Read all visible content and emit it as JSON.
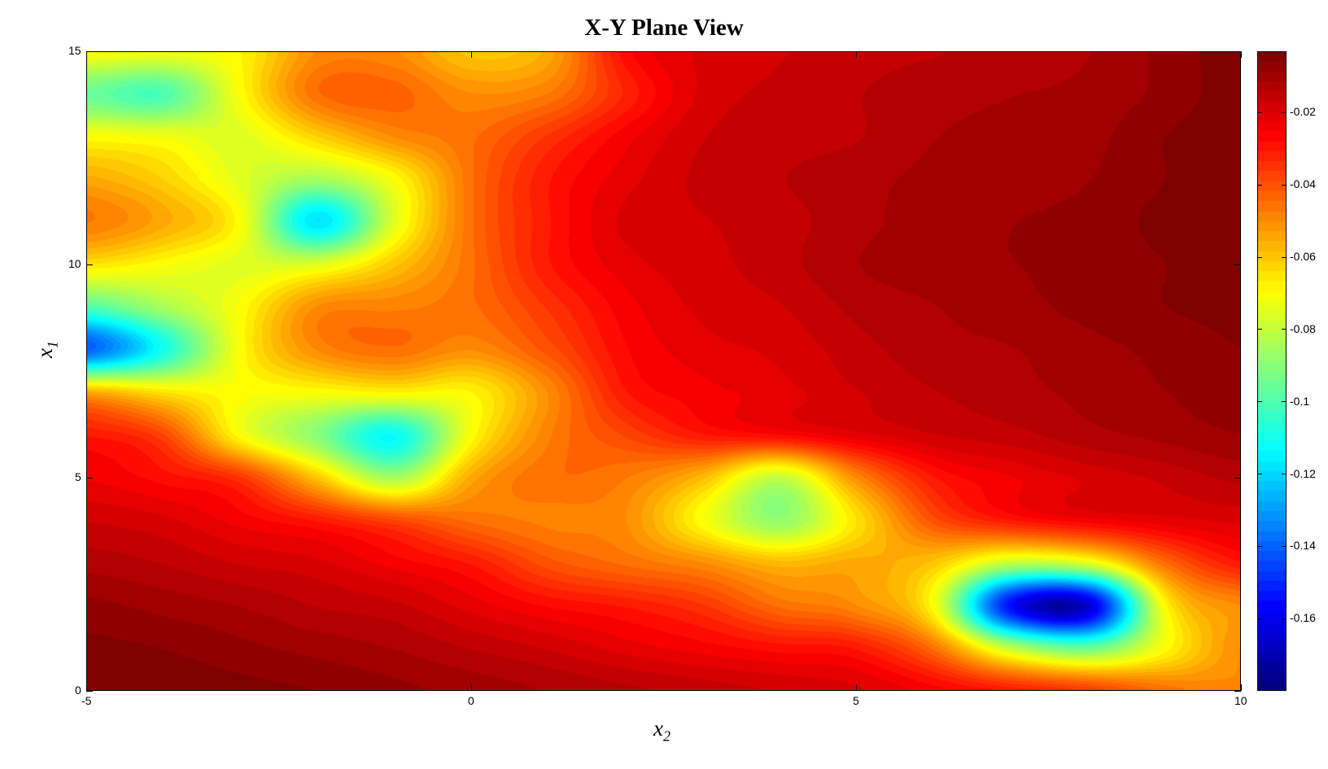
{
  "chart_data": {
    "type": "heatmap",
    "style": "filled-contour",
    "title": "X-Y Plane View",
    "xlabel": "x",
    "xlabel_sub": "2",
    "ylabel": "x",
    "ylabel_sub": "1",
    "xlim": [
      -5,
      10
    ],
    "ylim": [
      0,
      15
    ],
    "xticks": [
      -5,
      0,
      5,
      10
    ],
    "yticks": [
      0,
      5,
      10,
      15
    ],
    "colormap": "jet",
    "clim": [
      -0.18,
      -0.003
    ],
    "colorbar": {
      "position": "right",
      "ticks": [
        -0.02,
        -0.04,
        -0.06,
        -0.08,
        -0.1,
        -0.12,
        -0.14,
        -0.16
      ]
    },
    "grid_x": [
      -5,
      -4,
      -3,
      -2,
      -1,
      0,
      1,
      2,
      3,
      4,
      5,
      6,
      7,
      8,
      9,
      10
    ],
    "grid_y": [
      15,
      14,
      13,
      12,
      11,
      10,
      9,
      8,
      7,
      6,
      5,
      4,
      3,
      2,
      1,
      0
    ],
    "values": [
      [
        -0.07,
        -0.072,
        -0.068,
        -0.05,
        -0.05,
        -0.06,
        -0.055,
        -0.028,
        -0.02,
        -0.018,
        -0.016,
        -0.015,
        -0.014,
        -0.012,
        -0.008,
        -0.004
      ],
      [
        -0.095,
        -0.1,
        -0.07,
        -0.045,
        -0.043,
        -0.05,
        -0.047,
        -0.032,
        -0.02,
        -0.017,
        -0.015,
        -0.013,
        -0.012,
        -0.011,
        -0.008,
        -0.004
      ],
      [
        -0.07,
        -0.072,
        -0.075,
        -0.062,
        -0.05,
        -0.045,
        -0.035,
        -0.025,
        -0.018,
        -0.016,
        -0.015,
        -0.012,
        -0.011,
        -0.01,
        -0.006,
        -0.004
      ],
      [
        -0.055,
        -0.062,
        -0.075,
        -0.085,
        -0.07,
        -0.045,
        -0.03,
        -0.022,
        -0.017,
        -0.015,
        -0.013,
        -0.011,
        -0.01,
        -0.009,
        -0.006,
        -0.004
      ],
      [
        -0.047,
        -0.055,
        -0.07,
        -0.118,
        -0.075,
        -0.045,
        -0.03,
        -0.02,
        -0.018,
        -0.016,
        -0.013,
        -0.01,
        -0.009,
        -0.008,
        -0.005,
        -0.004
      ],
      [
        -0.065,
        -0.07,
        -0.075,
        -0.075,
        -0.06,
        -0.045,
        -0.03,
        -0.022,
        -0.019,
        -0.016,
        -0.012,
        -0.01,
        -0.009,
        -0.008,
        -0.006,
        -0.004
      ],
      [
        -0.1,
        -0.085,
        -0.07,
        -0.05,
        -0.048,
        -0.045,
        -0.035,
        -0.025,
        -0.02,
        -0.018,
        -0.014,
        -0.012,
        -0.01,
        -0.008,
        -0.006,
        -0.005
      ],
      [
        -0.14,
        -0.11,
        -0.07,
        -0.05,
        -0.045,
        -0.05,
        -0.04,
        -0.027,
        -0.022,
        -0.02,
        -0.016,
        -0.013,
        -0.012,
        -0.01,
        -0.008,
        -0.006
      ],
      [
        -0.055,
        -0.065,
        -0.07,
        -0.07,
        -0.068,
        -0.068,
        -0.05,
        -0.03,
        -0.025,
        -0.022,
        -0.018,
        -0.015,
        -0.013,
        -0.011,
        -0.009,
        -0.007
      ],
      [
        -0.03,
        -0.038,
        -0.07,
        -0.09,
        -0.112,
        -0.07,
        -0.048,
        -0.038,
        -0.03,
        -0.027,
        -0.022,
        -0.018,
        -0.016,
        -0.013,
        -0.011,
        -0.009
      ],
      [
        -0.024,
        -0.028,
        -0.035,
        -0.06,
        -0.085,
        -0.055,
        -0.045,
        -0.047,
        -0.058,
        -0.08,
        -0.05,
        -0.03,
        -0.024,
        -0.02,
        -0.017,
        -0.014
      ],
      [
        -0.018,
        -0.02,
        -0.025,
        -0.03,
        -0.038,
        -0.045,
        -0.048,
        -0.05,
        -0.07,
        -0.088,
        -0.065,
        -0.04,
        -0.03,
        -0.025,
        -0.022,
        -0.02
      ],
      [
        -0.013,
        -0.015,
        -0.018,
        -0.02,
        -0.025,
        -0.03,
        -0.04,
        -0.045,
        -0.05,
        -0.058,
        -0.055,
        -0.06,
        -0.08,
        -0.075,
        -0.045,
        -0.03
      ],
      [
        -0.008,
        -0.01,
        -0.012,
        -0.015,
        -0.017,
        -0.022,
        -0.027,
        -0.03,
        -0.035,
        -0.045,
        -0.05,
        -0.07,
        -0.155,
        -0.165,
        -0.07,
        -0.05
      ],
      [
        -0.005,
        -0.006,
        -0.008,
        -0.01,
        -0.012,
        -0.015,
        -0.018,
        -0.022,
        -0.025,
        -0.028,
        -0.03,
        -0.045,
        -0.08,
        -0.095,
        -0.07,
        -0.05
      ],
      [
        -0.003,
        -0.004,
        -0.005,
        -0.006,
        -0.008,
        -0.01,
        -0.012,
        -0.014,
        -0.016,
        -0.018,
        -0.02,
        -0.025,
        -0.03,
        -0.035,
        -0.045,
        -0.05
      ]
    ]
  }
}
